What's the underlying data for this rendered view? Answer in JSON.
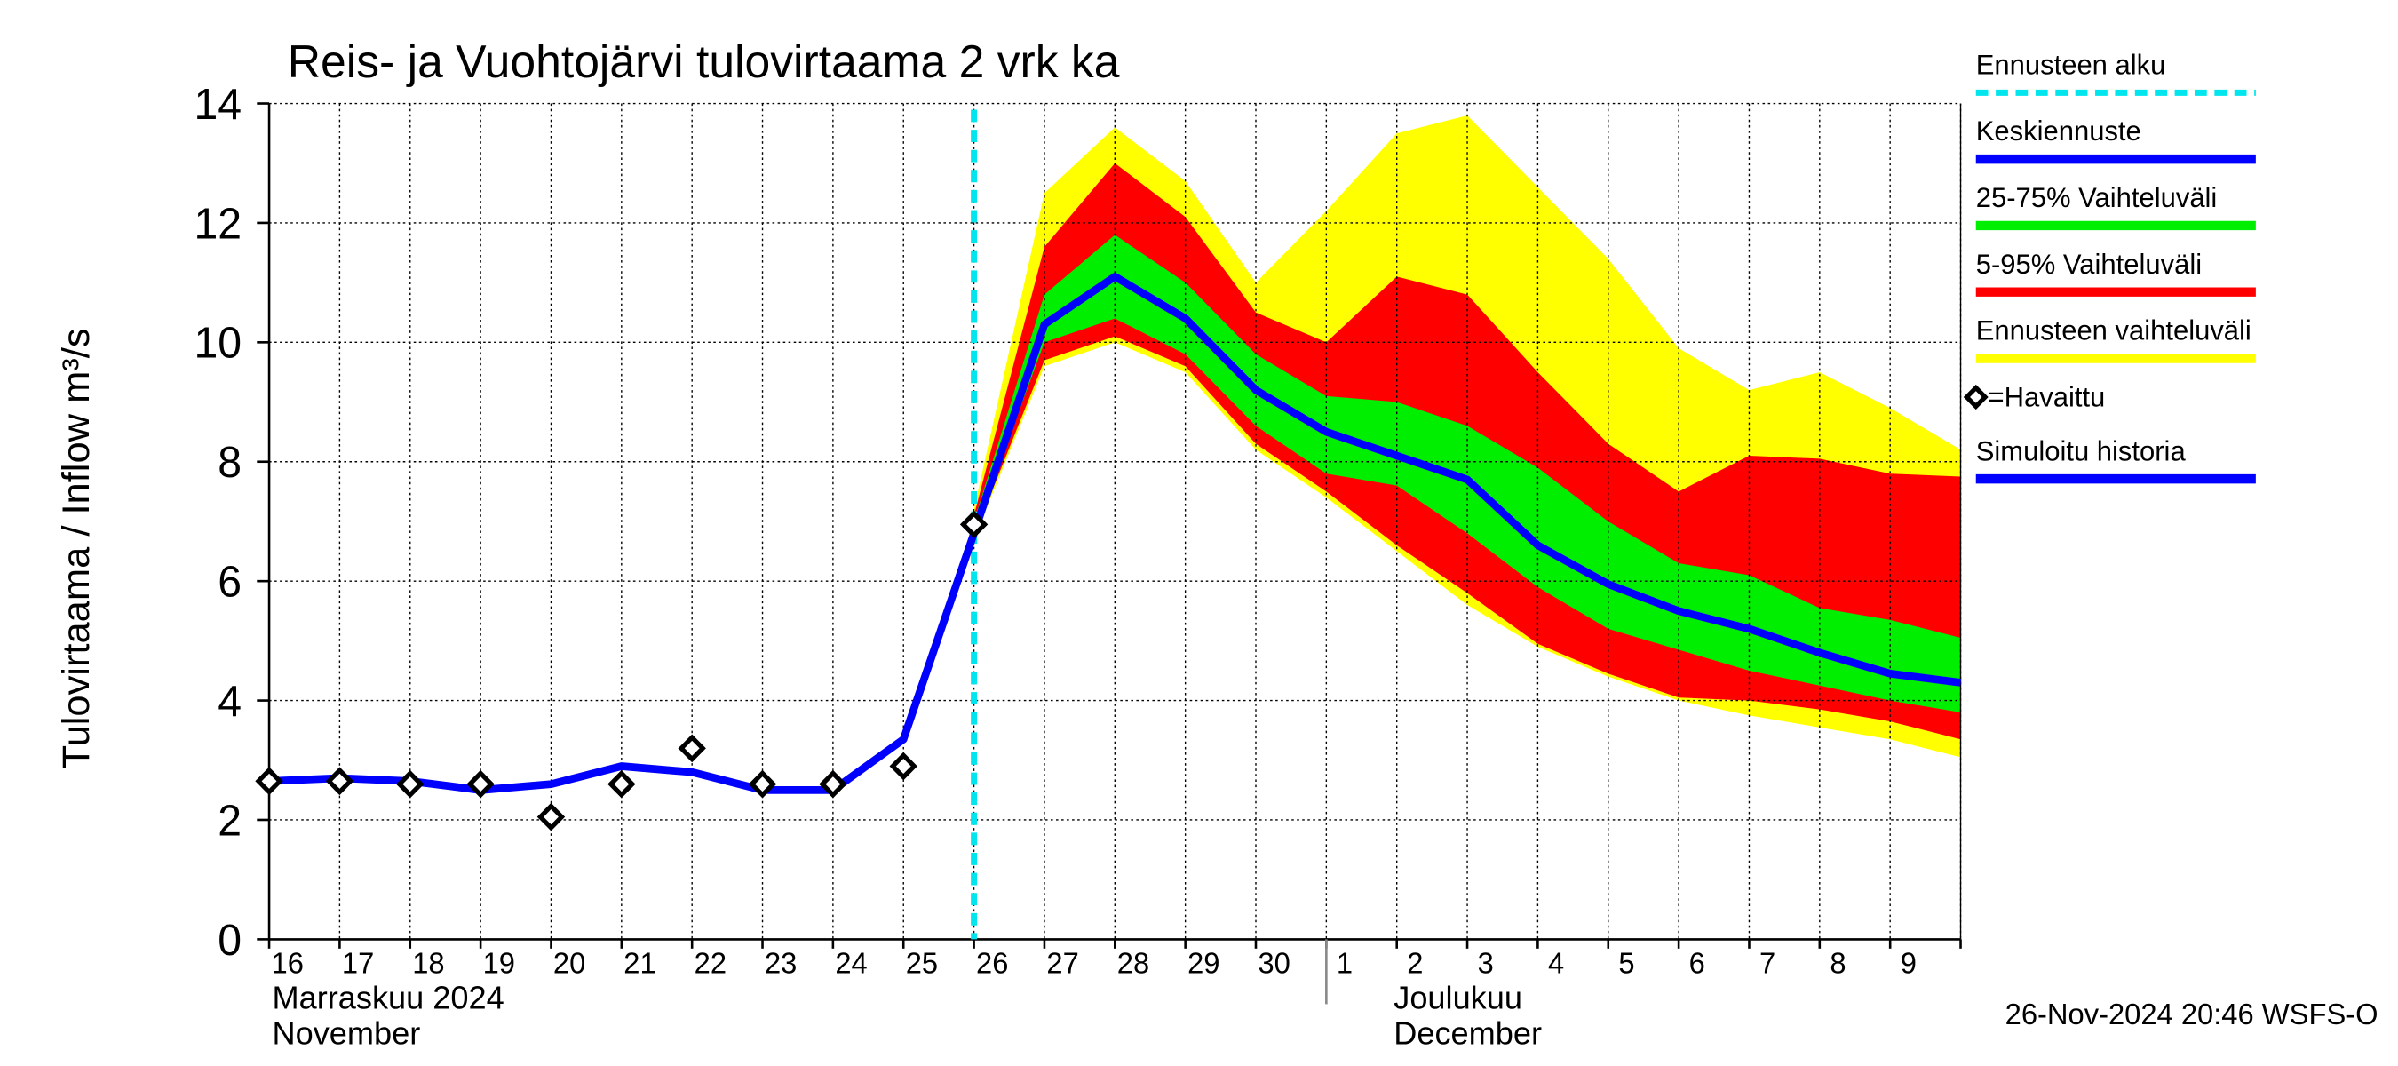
{
  "chart_data": {
    "type": "line",
    "title": "Reis- ja Vuohtojärvi tulovirtaama  2 vrk ka",
    "y_label": "Tulovirtaama / Inflow   m³/s",
    "categories": [
      "16",
      "17",
      "18",
      "19",
      "20",
      "21",
      "22",
      "23",
      "24",
      "25",
      "26",
      "27",
      "28",
      "29",
      "30",
      "1",
      "2",
      "3",
      "4",
      "5",
      "6",
      "7",
      "8",
      "9",
      null
    ],
    "months": [
      {
        "fi": "Marraskuu 2024",
        "en": "November"
      },
      {
        "fi": "Joulukuu",
        "en": "December"
      }
    ],
    "timestamp": "26-Nov-2024 20:46 WSFS-O",
    "ylim": [
      0,
      14
    ],
    "yticks": [
      0,
      2,
      4,
      6,
      8,
      10,
      12,
      14
    ],
    "grid": true,
    "forecast_start": {
      "name": "Ennusteen alku",
      "color": "#00e5ee"
    },
    "series": [
      {
        "name": "Keskiennuste",
        "kind": "line",
        "color": "#0000ff",
        "values": [
          null,
          null,
          null,
          null,
          null,
          null,
          null,
          null,
          null,
          null,
          6.8,
          10.3,
          11.1,
          10.4,
          9.2,
          8.5,
          8.1,
          7.7,
          6.6,
          5.95,
          5.5,
          5.2,
          4.8,
          4.45,
          4.3
        ]
      },
      {
        "name": "25-75% Vaihteluväli",
        "kind": "band",
        "color": "#00ee00",
        "upper": [
          null,
          null,
          null,
          null,
          null,
          null,
          null,
          null,
          null,
          null,
          7.0,
          10.8,
          11.8,
          11.0,
          9.8,
          9.1,
          9.0,
          8.6,
          7.9,
          7.0,
          6.3,
          6.1,
          5.55,
          5.35,
          5.05
        ],
        "lower": [
          null,
          null,
          null,
          null,
          null,
          null,
          null,
          null,
          null,
          null,
          6.8,
          10.0,
          10.4,
          9.8,
          8.6,
          7.8,
          7.6,
          6.8,
          5.9,
          5.2,
          4.85,
          4.5,
          4.25,
          4.0,
          3.8
        ]
      },
      {
        "name": "5-95% Vaihteluväli",
        "kind": "band",
        "color": "#ff0000",
        "upper": [
          null,
          null,
          null,
          null,
          null,
          null,
          null,
          null,
          null,
          null,
          7.1,
          11.6,
          13.0,
          12.1,
          10.5,
          10.0,
          11.1,
          10.8,
          9.5,
          8.3,
          7.5,
          8.1,
          8.05,
          7.8,
          7.75
        ],
        "lower": [
          null,
          null,
          null,
          null,
          null,
          null,
          null,
          null,
          null,
          null,
          6.75,
          9.7,
          10.1,
          9.6,
          8.3,
          7.5,
          6.6,
          5.8,
          4.95,
          4.45,
          4.05,
          4.0,
          3.85,
          3.65,
          3.35
        ]
      },
      {
        "name": "Ennusteen vaihteluväli",
        "kind": "band",
        "color": "#ffff00",
        "upper": [
          null,
          null,
          null,
          null,
          null,
          null,
          null,
          null,
          null,
          null,
          7.2,
          12.5,
          13.6,
          12.7,
          11.0,
          12.2,
          13.5,
          13.8,
          12.6,
          11.4,
          9.9,
          9.2,
          9.5,
          8.9,
          8.2
        ],
        "lower": [
          null,
          null,
          null,
          null,
          null,
          null,
          null,
          null,
          null,
          null,
          6.7,
          9.6,
          10.0,
          9.5,
          8.2,
          7.4,
          6.5,
          5.6,
          4.9,
          4.4,
          4.0,
          3.75,
          3.55,
          3.35,
          3.05
        ]
      },
      {
        "name": "=Havaittu",
        "kind": "markers",
        "color": "#000000",
        "values": [
          2.65,
          2.65,
          2.6,
          2.6,
          2.05,
          2.6,
          3.2,
          2.6,
          2.6,
          2.9,
          6.95,
          null,
          null,
          null,
          null,
          null,
          null,
          null,
          null,
          null,
          null,
          null,
          null,
          null,
          null
        ]
      },
      {
        "name": "Simuloitu historia",
        "kind": "line",
        "color": "#0000ff",
        "values": [
          2.65,
          2.7,
          2.65,
          2.5,
          2.6,
          2.9,
          2.8,
          2.5,
          2.5,
          3.35,
          6.8,
          null,
          null,
          null,
          null,
          null,
          null,
          null,
          null,
          null,
          null,
          null,
          null,
          null,
          null
        ]
      }
    ]
  }
}
